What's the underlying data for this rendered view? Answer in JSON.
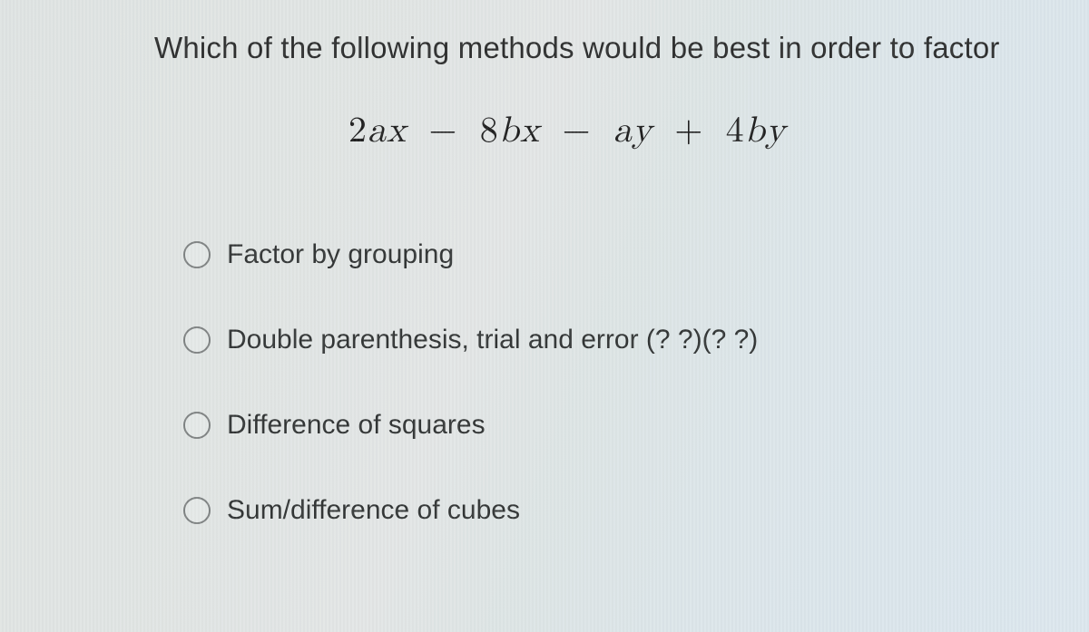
{
  "question_text": "Which of the following methods would be best in order to factor",
  "expression": {
    "t1_coef": "2",
    "t1_vars": "ax",
    "op1": "−",
    "t2_coef": "8",
    "t2_vars": "bx",
    "op2": "−",
    "t3_vars": "ay",
    "op3": "+",
    "t4_coef": "4",
    "t4_vars": "by"
  },
  "options": [
    {
      "label": "Factor by grouping"
    },
    {
      "label": "Double parenthesis, trial and error (? ?)(? ?)"
    },
    {
      "label": "Difference of squares"
    },
    {
      "label": "Sum/difference of cubes"
    }
  ],
  "colors": {
    "text": "#2e2f2f",
    "radio_border": "#7f8383",
    "bg_left": "#dfe4e3",
    "bg_right": "#dce7ee"
  },
  "fonts": {
    "question_size_pt": 25,
    "expression_size_pt": 30,
    "option_size_pt": 23
  }
}
